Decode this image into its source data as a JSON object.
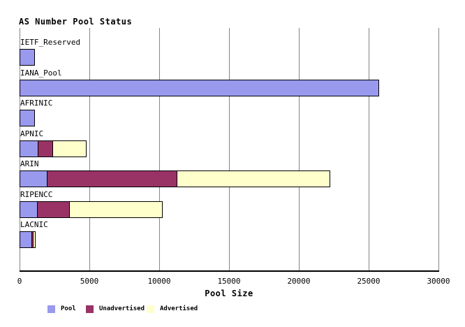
{
  "title": "AS Number Pool Status",
  "axis": {
    "xlabel": "Pool Size",
    "tick_labels": [
      "0",
      "5000",
      "10000",
      "15000",
      "20000",
      "25000",
      "30000"
    ],
    "max": 30000
  },
  "legend": [
    {
      "label": "Pool",
      "color": "#9999ee"
    },
    {
      "label": "Unadvertised",
      "color": "#993366"
    },
    {
      "label": "Advertised",
      "color": "#ffffcc"
    }
  ],
  "colors": {
    "pool": "#9999ee",
    "unadvertised": "#993366",
    "advertised": "#ffffcc",
    "gridline": "#858585",
    "axis": "#000000"
  },
  "chart_data": {
    "type": "bar",
    "orientation": "horizontal",
    "stacked": true,
    "title": "AS Number Pool Status",
    "xlabel": "Pool Size",
    "xlim": [
      0,
      30000
    ],
    "xticks": [
      0,
      5000,
      10000,
      15000,
      20000,
      25000,
      30000
    ],
    "grid": "vertical",
    "legend_position": "bottom",
    "categories": [
      "IETF_Reserved",
      "IANA_Pool",
      "AFRINIC",
      "APNIC",
      "ARIN",
      "RIPENCC",
      "LACNIC"
    ],
    "series": [
      {
        "name": "Pool",
        "color": "#9999ee",
        "values": [
          1000,
          25650,
          1000,
          1250,
          1900,
          1200,
          800
        ]
      },
      {
        "name": "Unadvertised",
        "color": "#993366",
        "values": [
          0,
          0,
          0,
          1050,
          9300,
          2300,
          100
        ]
      },
      {
        "name": "Advertised",
        "color": "#ffffcc",
        "values": [
          0,
          0,
          0,
          2400,
          10950,
          6650,
          150
        ]
      }
    ]
  }
}
